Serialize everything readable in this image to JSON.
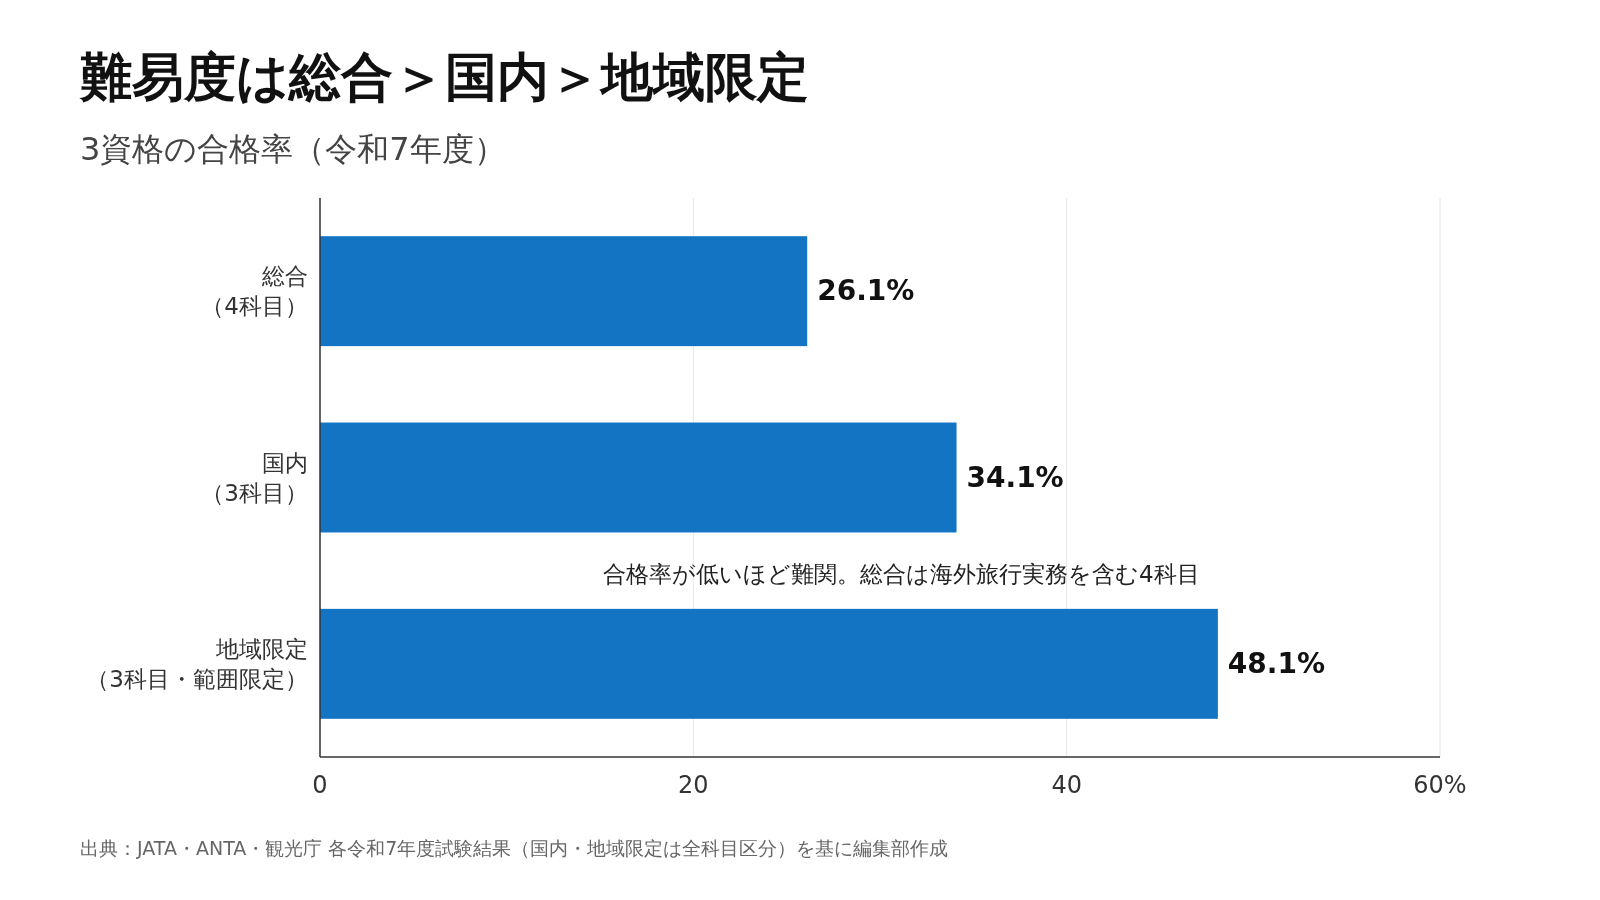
{
  "chart_data": {
    "type": "bar",
    "orientation": "horizontal",
    "title": "難易度は総合＞国内＞地域限定",
    "subtitle": "3資格の合格率（令和7年度）",
    "categories": [
      "総合（4科目）",
      "国内（3科目）",
      "地域限定（3科目・範囲限定）"
    ],
    "values": [
      26.1,
      34.1,
      48.1
    ],
    "value_labels": [
      "26.1%",
      "34.1%",
      "48.1%"
    ],
    "color": "#1374c4",
    "xlim": [
      0,
      60
    ],
    "xticks": [
      0,
      20,
      40,
      {
        "value": 60,
        "label": "60%"
      }
    ],
    "grid": "x",
    "annotations": [
      "合格率が低いほど難関。総合は海外旅行実務を含む4科目",
      "出典：JATA・ANTA・観光庁 各令和7年度試験結果（国内・地域限定は全科目区分）を基に編集部作成"
    ]
  }
}
